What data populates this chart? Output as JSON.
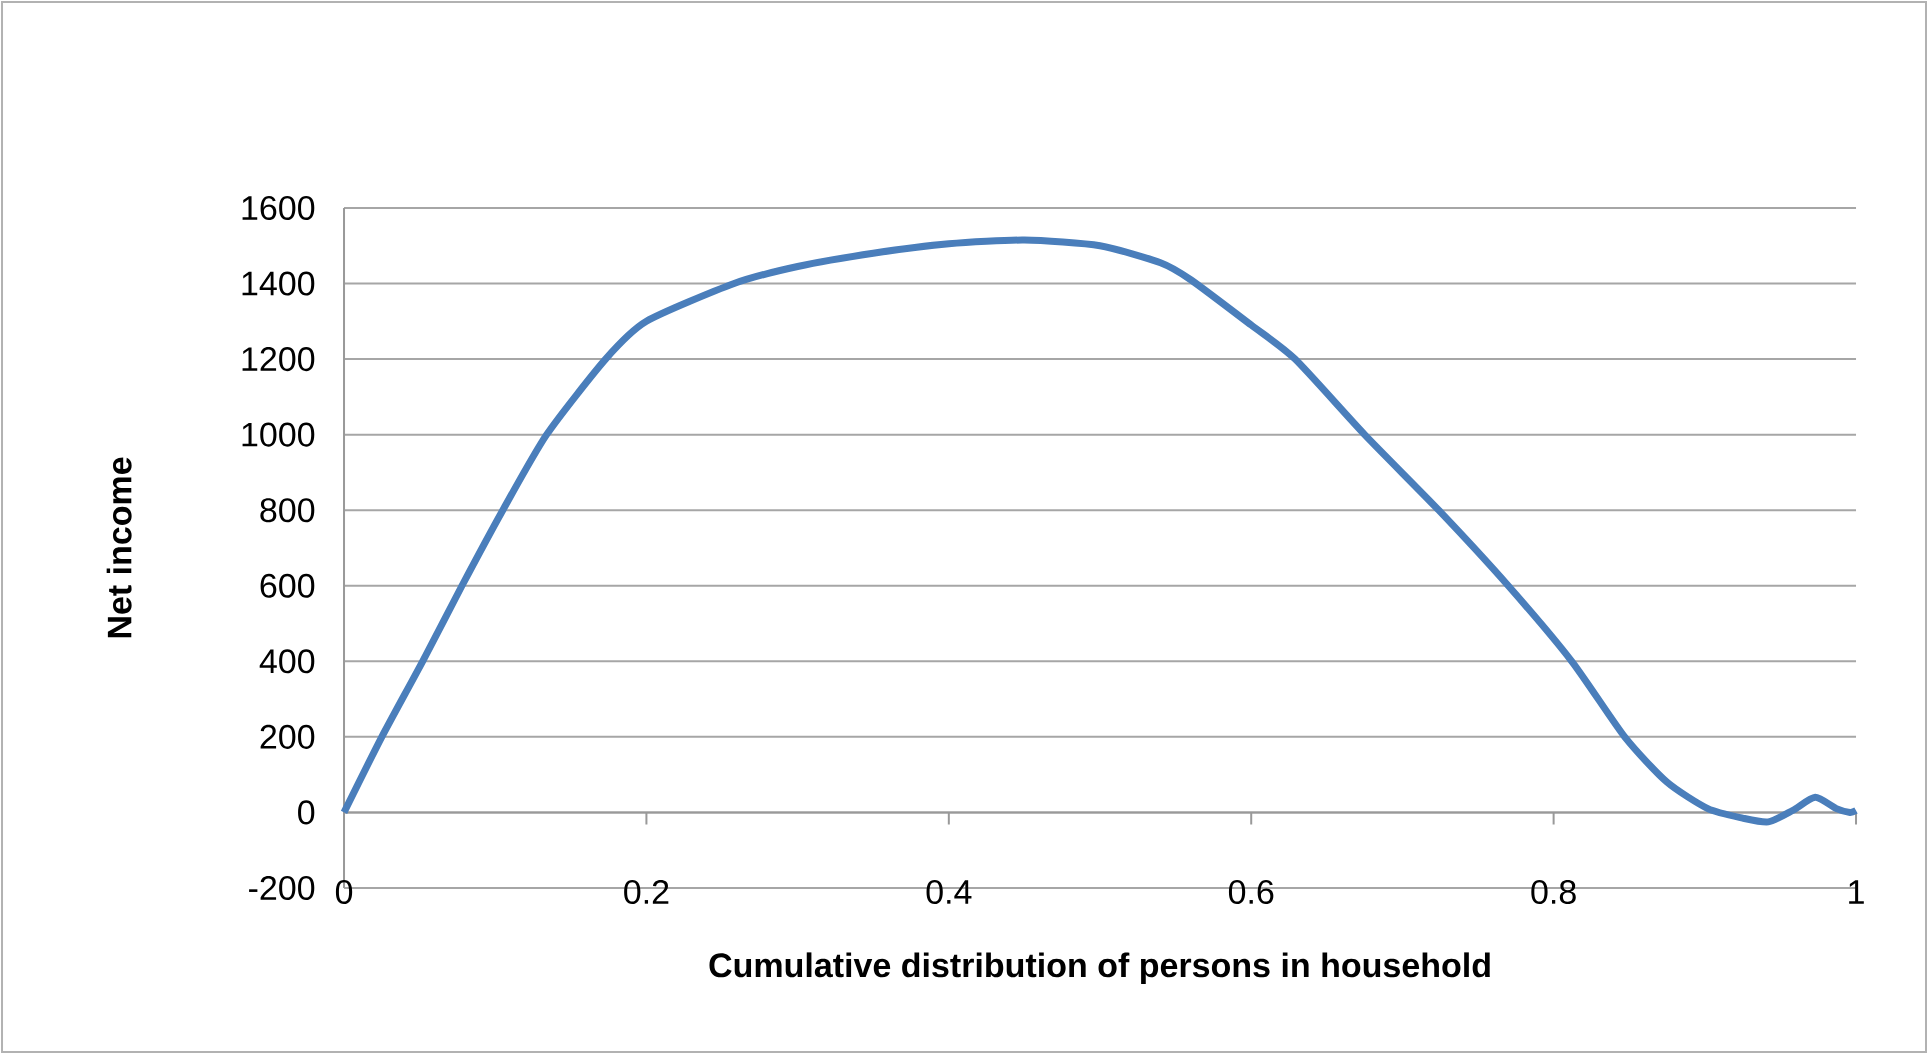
{
  "chart_data": {
    "type": "line",
    "xlabel": "Cumulative distribution of persons in household",
    "ylabel": "Net income",
    "xlim": [
      0,
      1
    ],
    "ylim": [
      -200,
      1600
    ],
    "xticks": [
      0,
      0.2,
      0.4,
      0.6,
      0.8,
      1
    ],
    "yticks": [
      -200,
      0,
      200,
      400,
      600,
      800,
      1000,
      1200,
      1400,
      1600
    ],
    "grid": "y",
    "marker": "none",
    "line_style": "solid",
    "series": [
      {
        "color": "#4a7ebb",
        "x": [
          0,
          0.025,
          0.052,
          0.078,
          0.105,
          0.134,
          0.173,
          0.2,
          0.258,
          0.3,
          0.35,
          0.4,
          0.45,
          0.5,
          0.54,
          0.56,
          0.6,
          0.629,
          0.675,
          0.724,
          0.77,
          0.812,
          0.847,
          0.875,
          0.902,
          0.925,
          0.942,
          0.958,
          0.973,
          0.987,
          0.996,
          1.0
        ],
        "values": [
          0,
          200,
          400,
          600,
          800,
          1000,
          1200,
          1300,
          1400,
          1445,
          1480,
          1505,
          1515,
          1500,
          1455,
          1410,
          1290,
          1200,
          1000,
          800,
          600,
          400,
          200,
          80,
          10,
          -15,
          -25,
          5,
          40,
          10,
          0,
          5
        ]
      }
    ]
  }
}
